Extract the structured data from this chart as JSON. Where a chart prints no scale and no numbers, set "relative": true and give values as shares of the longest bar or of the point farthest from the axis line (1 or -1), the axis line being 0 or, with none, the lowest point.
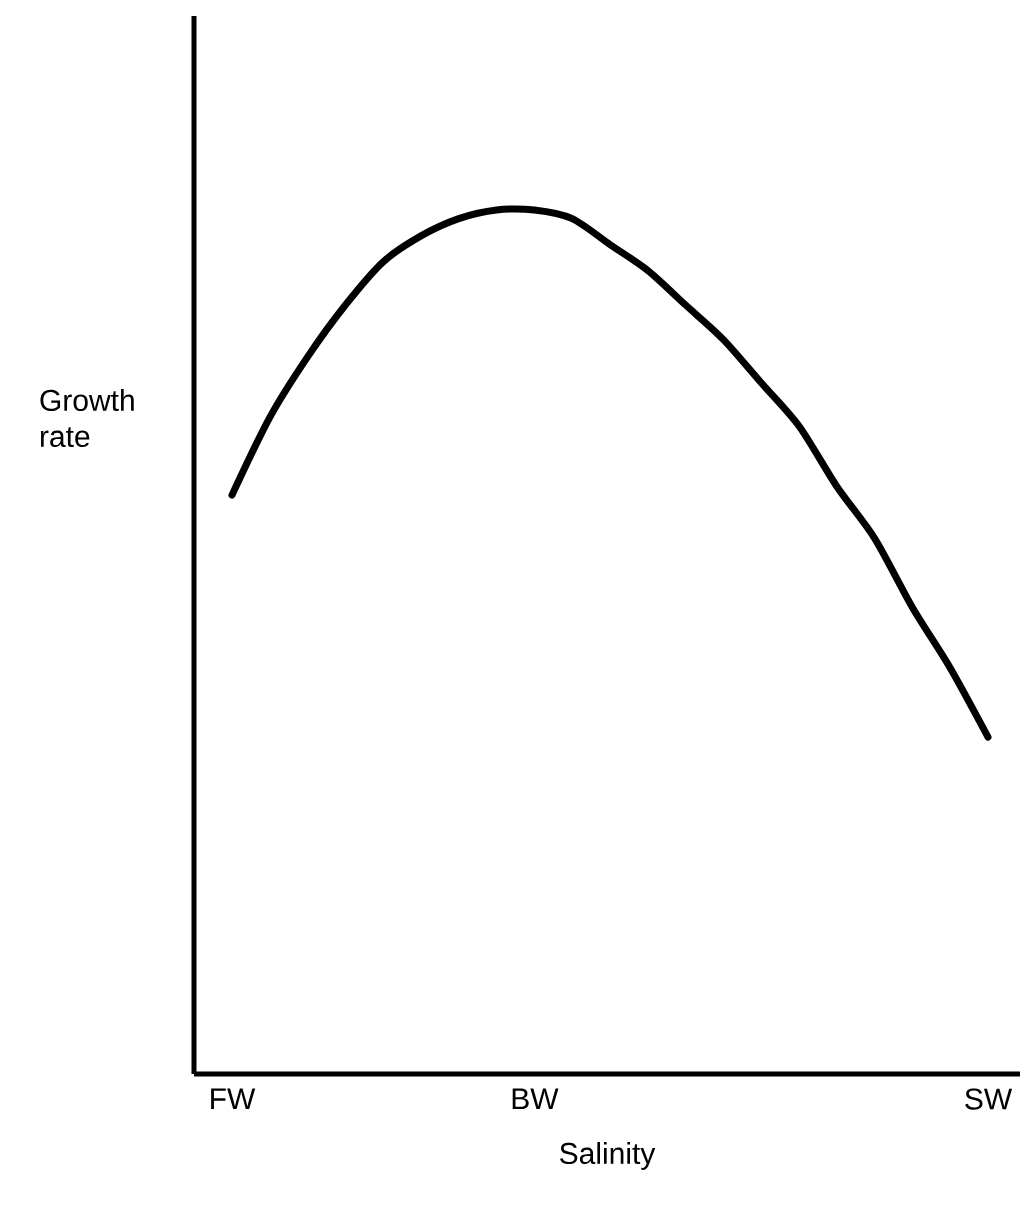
{
  "chart_data": {
    "type": "line",
    "relative": true,
    "xlabel": "Salinity",
    "ylabel": "Growth rate",
    "categories": [
      "FW",
      null,
      null,
      null,
      null,
      null,
      null,
      null,
      "BW",
      null,
      null,
      null,
      null,
      null,
      null,
      null,
      null,
      null,
      null,
      null,
      "SW"
    ],
    "values": [
      0.67,
      0.76,
      0.83,
      0.89,
      0.94,
      0.97,
      0.99,
      1.0,
      1.0,
      0.99,
      0.96,
      0.93,
      0.89,
      0.85,
      0.8,
      0.75,
      0.68,
      0.62,
      0.54,
      0.47,
      0.39
    ],
    "color": "#000000",
    "marker": "none",
    "line_style": "solid"
  }
}
